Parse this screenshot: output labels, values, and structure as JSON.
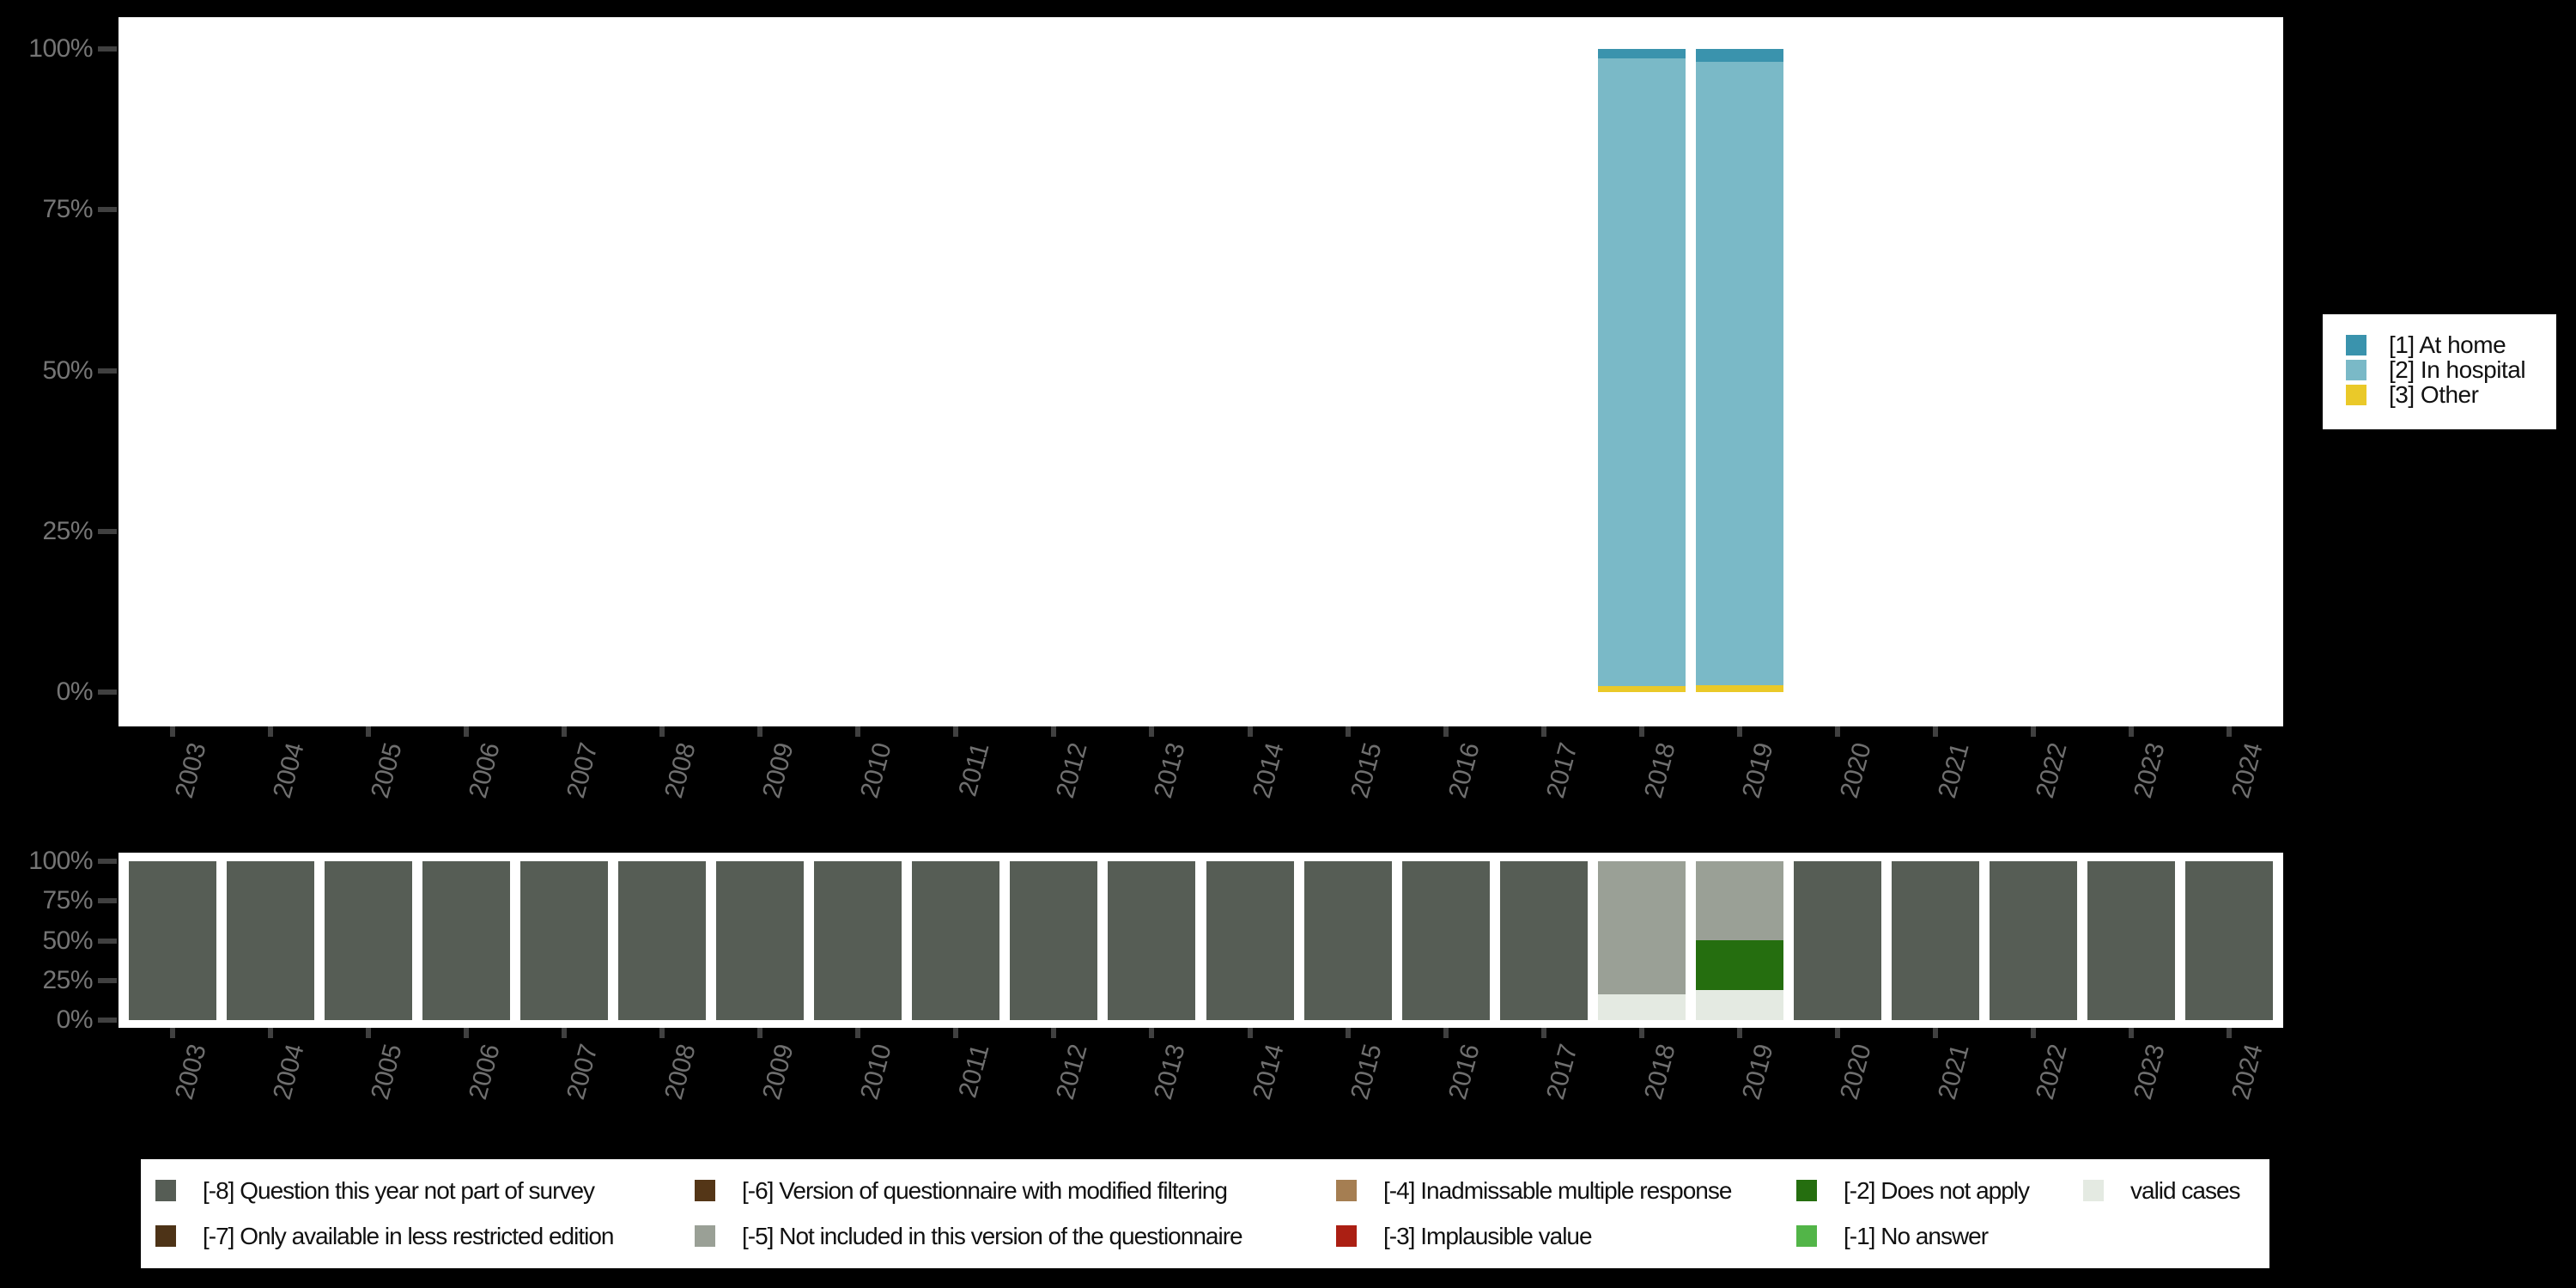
{
  "colors": {
    "background": "#000000",
    "plot_background": "#ffffff",
    "axis_text": "#6f6f6f",
    "tick_mark": "#404040",
    "legend_text": "#111111"
  },
  "chart_data": [
    {
      "type": "bar",
      "stacked": true,
      "title": "",
      "xlabel": "",
      "ylabel": "",
      "ylim": [
        0,
        100
      ],
      "grid": false,
      "yticks": [
        "100%",
        "75%",
        "50%",
        "25%",
        "0%"
      ],
      "categories": [
        "2003",
        "2004",
        "2005",
        "2006",
        "2007",
        "2008",
        "2009",
        "2010",
        "2011",
        "2012",
        "2013",
        "2014",
        "2015",
        "2016",
        "2017",
        "2018",
        "2019",
        "2020",
        "2021",
        "2022",
        "2023",
        "2024"
      ],
      "series": [
        {
          "name": "[1] At home",
          "color": "#3a93ad",
          "values": [
            0,
            0,
            0,
            0,
            0,
            0,
            0,
            0,
            0,
            0,
            0,
            0,
            0,
            0,
            0,
            1.5,
            2,
            0,
            0,
            0,
            0,
            0
          ]
        },
        {
          "name": "[2] In hospital",
          "color": "#7ab9c7",
          "values": [
            0,
            0,
            0,
            0,
            0,
            0,
            0,
            0,
            0,
            0,
            0,
            0,
            0,
            0,
            0,
            97.5,
            97,
            0,
            0,
            0,
            0,
            0
          ]
        },
        {
          "name": "[3] Other",
          "color": "#eac929",
          "values": [
            0,
            0,
            0,
            0,
            0,
            0,
            0,
            0,
            0,
            0,
            0,
            0,
            0,
            0,
            0,
            1,
            1,
            0,
            0,
            0,
            0,
            0
          ]
        }
      ],
      "legend_position": "right"
    },
    {
      "type": "bar",
      "stacked": true,
      "title": "",
      "xlabel": "",
      "ylabel": "",
      "ylim": [
        0,
        100
      ],
      "grid": false,
      "yticks": [
        "100%",
        "75%",
        "50%",
        "25%",
        "0%"
      ],
      "categories": [
        "2003",
        "2004",
        "2005",
        "2006",
        "2007",
        "2008",
        "2009",
        "2010",
        "2011",
        "2012",
        "2013",
        "2014",
        "2015",
        "2016",
        "2017",
        "2018",
        "2019",
        "2020",
        "2021",
        "2022",
        "2023",
        "2024"
      ],
      "series": [
        {
          "name": "[-8] Question this year not part of survey",
          "color": "#565d55",
          "values": [
            100,
            100,
            100,
            100,
            100,
            100,
            100,
            100,
            100,
            100,
            100,
            100,
            100,
            100,
            100,
            0,
            0,
            100,
            100,
            100,
            100,
            100
          ]
        },
        {
          "name": "[-5] Not included in this version of the questionnaire",
          "color": "#9aa096",
          "values": [
            0,
            0,
            0,
            0,
            0,
            0,
            0,
            0,
            0,
            0,
            0,
            0,
            0,
            0,
            0,
            84,
            49.5,
            0,
            0,
            0,
            0,
            0
          ]
        },
        {
          "name": "[-2] Does not apply",
          "color": "#256e0f",
          "values": [
            0,
            0,
            0,
            0,
            0,
            0,
            0,
            0,
            0,
            0,
            0,
            0,
            0,
            0,
            0,
            0,
            31.5,
            0,
            0,
            0,
            0,
            0
          ]
        },
        {
          "name": "valid cases",
          "color": "#e4eae2",
          "values": [
            0,
            0,
            0,
            0,
            0,
            0,
            0,
            0,
            0,
            0,
            0,
            0,
            0,
            0,
            0,
            16,
            19,
            0,
            0,
            0,
            0,
            0
          ]
        }
      ],
      "legend_position": "bottom"
    }
  ],
  "legend_main": {
    "items": [
      {
        "label": "[1] At home",
        "color": "#3a93ad"
      },
      {
        "label": "[2] In hospital",
        "color": "#7ab9c7"
      },
      {
        "label": "[3] Other",
        "color": "#eac929"
      }
    ]
  },
  "legend_missing": {
    "items": [
      {
        "label": "[-8] Question this year not part of survey",
        "color": "#565d55",
        "row": 0,
        "col": 0
      },
      {
        "label": "[-7] Only available in less restricted edition",
        "color": "#4d3317",
        "row": 1,
        "col": 0
      },
      {
        "label": "[-6] Version of questionnaire with modified filtering",
        "color": "#543617",
        "row": 0,
        "col": 1
      },
      {
        "label": "[-5] Not included in this version of the questionnaire",
        "color": "#9aa096",
        "row": 1,
        "col": 1
      },
      {
        "label": "[-4] Inadmissable multiple response",
        "color": "#a57e52",
        "row": 0,
        "col": 2
      },
      {
        "label": "[-3] Implausible value",
        "color": "#ab1f13",
        "row": 1,
        "col": 2
      },
      {
        "label": "[-2] Does not apply",
        "color": "#256e0f",
        "row": 0,
        "col": 3
      },
      {
        "label": "[-1] No answer",
        "color": "#52b548",
        "row": 1,
        "col": 3
      },
      {
        "label": "valid cases",
        "color": "#e4eae2",
        "row": 0,
        "col": 4
      }
    ]
  }
}
